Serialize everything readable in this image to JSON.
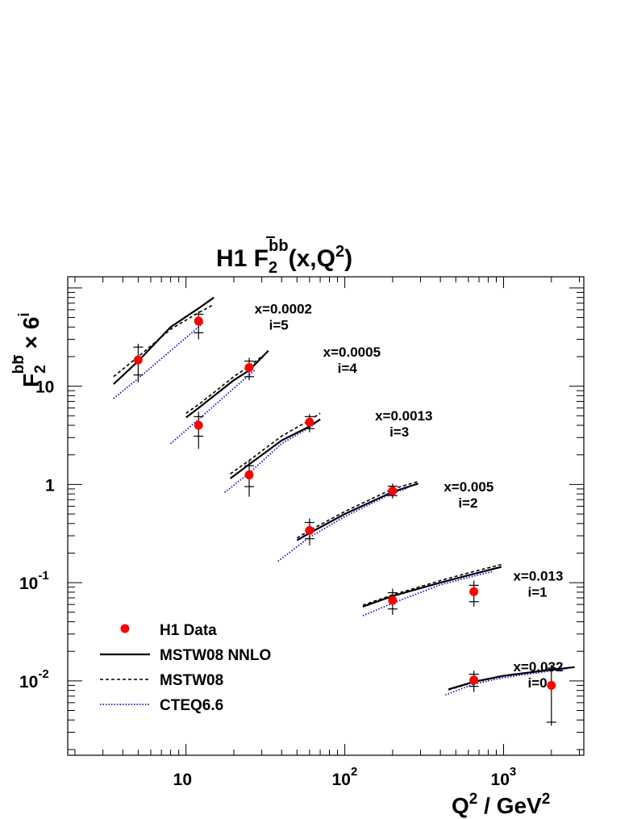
{
  "chart_data": {
    "type": "scatter",
    "title": "H1 F2 bb̄(x,Q2)",
    "title_parts": {
      "main": "H1 F",
      "sub": "2",
      "sup": "bb",
      "tail": "(x,Q",
      "sup2": "2",
      "end": ")"
    },
    "xlabel": "Q2 / GeV2",
    "xlabel_parts": {
      "q": "Q",
      "sup1": "2",
      "mid": " / GeV",
      "sup2": "2"
    },
    "ylabel": "F2 bb̄ × 6i",
    "ylabel_parts": {
      "f": "F",
      "sub": "2",
      "sup": "bb",
      "times": " × 6",
      "sup2": "i"
    },
    "x_scale": "log",
    "y_scale": "log",
    "xlim": [
      1.8,
      3200
    ],
    "ylim": [
      0.00175,
      130
    ],
    "x_ticks": [
      {
        "value": 10,
        "base": "10",
        "exp": ""
      },
      {
        "value": 100,
        "base": "10",
        "exp": "2"
      },
      {
        "value": 1000,
        "base": "10",
        "exp": "3"
      }
    ],
    "y_ticks": [
      {
        "value": 0.01,
        "base": "10",
        "exp": "-2"
      },
      {
        "value": 0.1,
        "base": "10",
        "exp": "-1"
      },
      {
        "value": 1,
        "base": "1",
        "exp": ""
      },
      {
        "value": 10,
        "base": "10",
        "exp": ""
      }
    ],
    "bins": [
      {
        "x_label": "x=0.0002",
        "i_label": "i=5",
        "label_pos": [
          27,
          55
        ]
      },
      {
        "x_label": "x=0.0005",
        "i_label": "i=4",
        "label_pos": [
          73,
          20
        ]
      },
      {
        "x_label": "x=0.0013",
        "i_label": "i=3",
        "label_pos": [
          155,
          4.5
        ]
      },
      {
        "x_label": "x=0.005",
        "i_label": "i=2",
        "label_pos": [
          420,
          0.85
        ]
      },
      {
        "x_label": "x=0.013",
        "i_label": "i=1",
        "label_pos": [
          1150,
          0.105
        ]
      },
      {
        "x_label": "x=0.032",
        "i_label": "i=0",
        "label_pos": [
          1150,
          0.0125
        ]
      }
    ],
    "data_points": [
      {
        "x": 5,
        "y": 18.5,
        "stat_lo": 13,
        "stat_hi": 25,
        "tot_lo": 11,
        "tot_hi": 27
      },
      {
        "x": 12,
        "y": 46,
        "stat_lo": 35,
        "stat_hi": 54,
        "tot_lo": 30,
        "tot_hi": 58
      },
      {
        "x": 12,
        "y": 4.0,
        "stat_lo": 3.1,
        "stat_hi": 4.9,
        "tot_lo": 2.3,
        "tot_hi": 5.5
      },
      {
        "x": 25,
        "y": 15.5,
        "stat_lo": 12.5,
        "stat_hi": 18,
        "tot_lo": 11.5,
        "tot_hi": 19.5
      },
      {
        "x": 25,
        "y": 1.25,
        "stat_lo": 0.95,
        "stat_hi": 1.55,
        "tot_lo": 0.75,
        "tot_hi": 1.75
      },
      {
        "x": 60,
        "y": 4.3,
        "stat_lo": 3.7,
        "stat_hi": 4.9,
        "tot_lo": 3.4,
        "tot_hi": 5.2
      },
      {
        "x": 60,
        "y": 0.34,
        "stat_lo": 0.28,
        "stat_hi": 0.41,
        "tot_lo": 0.24,
        "tot_hi": 0.45
      },
      {
        "x": 200,
        "y": 0.86,
        "stat_lo": 0.77,
        "stat_hi": 0.96,
        "tot_lo": 0.72,
        "tot_hi": 1.02
      },
      {
        "x": 200,
        "y": 0.066,
        "stat_lo": 0.054,
        "stat_hi": 0.079,
        "tot_lo": 0.047,
        "tot_hi": 0.087
      },
      {
        "x": 650,
        "y": 0.081,
        "stat_lo": 0.064,
        "stat_hi": 0.094,
        "tot_lo": 0.057,
        "tot_hi": 0.105
      },
      {
        "x": 650,
        "y": 0.0102,
        "stat_lo": 0.0088,
        "stat_hi": 0.0117,
        "tot_lo": 0.0077,
        "tot_hi": 0.0127
      },
      {
        "x": 2000,
        "y": 0.009,
        "stat_lo": 0.0038,
        "stat_hi": 0.0135,
        "tot_lo": 0.0035,
        "tot_hi": 0.0145
      }
    ],
    "series": [
      {
        "name": "MSTW08 NNLO",
        "style": "solid",
        "color": "#000000",
        "curves": [
          [
            [
              3.5,
              10.5
            ],
            [
              5,
              18
            ],
            [
              8,
              40
            ],
            [
              12,
              62
            ],
            [
              15,
              80
            ]
          ],
          [
            [
              10,
              4.8
            ],
            [
              12,
              6.0
            ],
            [
              20,
              11.5
            ],
            [
              25,
              14.5
            ],
            [
              33,
              23
            ]
          ],
          [
            [
              19,
              1.15
            ],
            [
              25,
              1.6
            ],
            [
              40,
              2.8
            ],
            [
              60,
              3.9
            ],
            [
              70,
              4.6
            ]
          ],
          [
            [
              50,
              0.27
            ],
            [
              60,
              0.32
            ],
            [
              100,
              0.5
            ],
            [
              200,
              0.84
            ],
            [
              290,
              1.02
            ]
          ],
          [
            [
              130,
              0.057
            ],
            [
              200,
              0.073
            ],
            [
              400,
              0.1
            ],
            [
              650,
              0.123
            ],
            [
              970,
              0.145
            ]
          ],
          [
            [
              450,
              0.0082
            ],
            [
              650,
              0.0098
            ],
            [
              1000,
              0.0113
            ],
            [
              2000,
              0.013
            ],
            [
              2800,
              0.0138
            ]
          ]
        ]
      },
      {
        "name": "MSTW08",
        "style": "dashed",
        "color": "#000000",
        "curves": [
          [
            [
              3.5,
              12.5
            ],
            [
              5,
              20
            ],
            [
              8,
              38
            ],
            [
              12,
              56
            ],
            [
              15,
              68
            ]
          ],
          [
            [
              10,
              5.3
            ],
            [
              12,
              6.5
            ],
            [
              20,
              12.5
            ],
            [
              25,
              16
            ],
            [
              30,
              20
            ]
          ],
          [
            [
              19,
              1.28
            ],
            [
              25,
              1.75
            ],
            [
              40,
              3.1
            ],
            [
              60,
              4.5
            ],
            [
              70,
              5.3
            ]
          ],
          [
            [
              50,
              0.285
            ],
            [
              60,
              0.34
            ],
            [
              100,
              0.53
            ],
            [
              200,
              0.9
            ],
            [
              290,
              1.07
            ]
          ],
          [
            [
              130,
              0.059
            ],
            [
              200,
              0.075
            ],
            [
              400,
              0.105
            ],
            [
              650,
              0.13
            ],
            [
              970,
              0.153
            ]
          ],
          [
            [
              450,
              0.0081
            ],
            [
              650,
              0.0097
            ],
            [
              1000,
              0.0112
            ],
            [
              2000,
              0.013
            ],
            [
              2800,
              0.0138
            ]
          ]
        ]
      },
      {
        "name": "CTEQ6.6",
        "style": "dotted",
        "color": "#1010cc",
        "curves": [
          [
            [
              3.5,
              7.5
            ],
            [
              5,
              12
            ],
            [
              8,
              23
            ],
            [
              12,
              40
            ],
            [
              13,
              45
            ]
          ],
          [
            [
              8,
              2.6
            ],
            [
              12,
              4.6
            ],
            [
              20,
              9.5
            ],
            [
              25,
              13.0
            ],
            [
              27,
              14.5
            ]
          ],
          [
            [
              17.5,
              0.83
            ],
            [
              25,
              1.3
            ],
            [
              40,
              2.6
            ],
            [
              60,
              3.8
            ],
            [
              68,
              4.4
            ]
          ],
          [
            [
              38,
              0.165
            ],
            [
              60,
              0.29
            ],
            [
              100,
              0.47
            ],
            [
              200,
              0.82
            ],
            [
              250,
              0.92
            ]
          ],
          [
            [
              130,
              0.046
            ],
            [
              200,
              0.062
            ],
            [
              400,
              0.095
            ],
            [
              650,
              0.117
            ],
            [
              860,
              0.13
            ]
          ],
          [
            [
              430,
              0.0072
            ],
            [
              650,
              0.0093
            ],
            [
              1000,
              0.0108
            ],
            [
              2000,
              0.0127
            ],
            [
              2500,
              0.0133
            ]
          ]
        ]
      }
    ],
    "legend": {
      "placement": "bottom-left",
      "entries": [
        {
          "label": "H1 Data",
          "kind": "marker"
        },
        {
          "label": "MSTW08 NNLO",
          "kind": "solid"
        },
        {
          "label": "MSTW08",
          "kind": "dashed"
        },
        {
          "label": "CTEQ6.6",
          "kind": "dotted"
        }
      ]
    },
    "colors": {
      "data": "#ff0000",
      "cteq": "#1010cc",
      "axis": "#000000"
    },
    "grid": false
  }
}
